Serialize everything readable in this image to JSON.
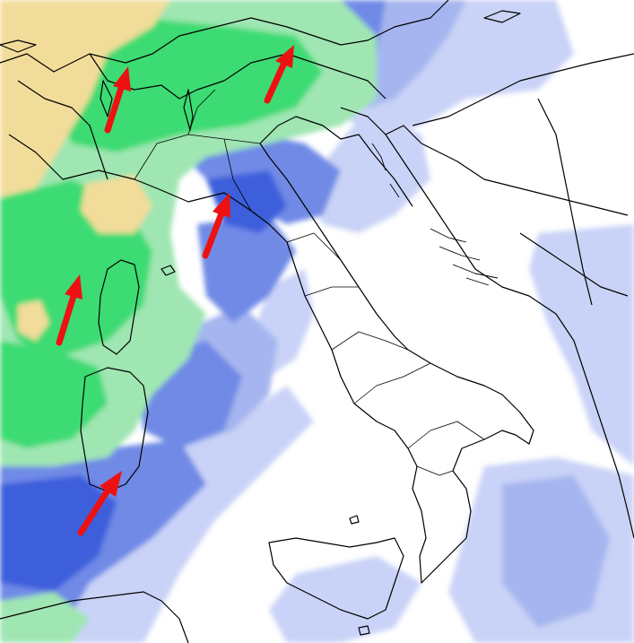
{
  "map": {
    "colors": {
      "sea_background": "#ffffff",
      "pale_blue": "#c9d3f7",
      "light_blue": "#a6b5ef",
      "blue": "#6f8ae6",
      "deep_blue": "#3d5fdc",
      "light_green": "#9fe6b2",
      "green": "#3ddb73",
      "pale_yellow": "#f2dc9a",
      "yellow": "#f0c84a",
      "borders": "#000000",
      "arrow": "#ee1111"
    },
    "layers": [
      "precipitation-shading",
      "coastlines",
      "national-borders",
      "regional-borders",
      "wind-arrows"
    ],
    "arrows": [
      {
        "name": "arrow-swiss-alps",
        "direction": "north-northeast"
      },
      {
        "name": "arrow-eastern-alps",
        "direction": "north-northeast"
      },
      {
        "name": "arrow-ligurian-sea",
        "direction": "north-northeast"
      },
      {
        "name": "arrow-corsica-west",
        "direction": "north-northeast"
      },
      {
        "name": "arrow-sardinia-south",
        "direction": "northeast"
      }
    ]
  }
}
